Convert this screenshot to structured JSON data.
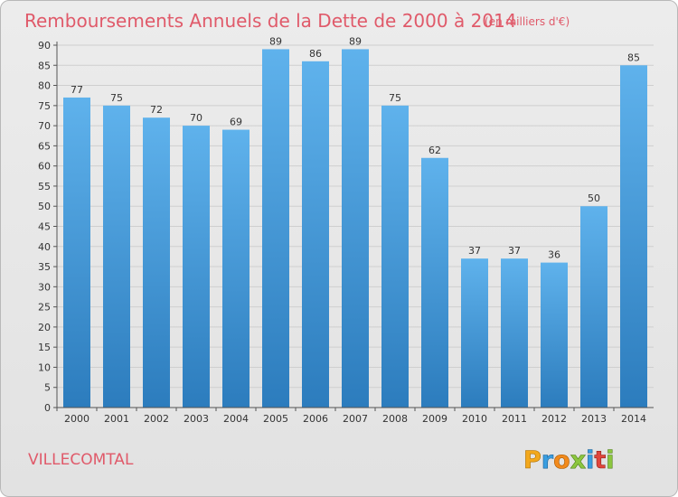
{
  "page": {
    "title": "Remboursements Annuels de la Dette de 2000 à 2014",
    "unit": "(en milliers d'€)",
    "commune": "VILLECOMTAL",
    "logo_text": "Proxiti"
  },
  "colors": {
    "title": "#e05a6a",
    "bar_light": "#5aaee8",
    "bar_dark": "#2f7fc0",
    "background": "#e6e6e6",
    "grid": "#cfcfcf"
  },
  "chart_data": {
    "type": "bar",
    "title": "Remboursements Annuels de la Dette de 2000 à 2014",
    "subtitle": "(en milliers d'€)",
    "categories": [
      "2000",
      "2001",
      "2002",
      "2003",
      "2004",
      "2005",
      "2006",
      "2007",
      "2008",
      "2009",
      "2010",
      "2011",
      "2012",
      "2013",
      "2014"
    ],
    "values": [
      77,
      75,
      72,
      70,
      69,
      89,
      86,
      89,
      75,
      62,
      37,
      37,
      36,
      50,
      85
    ],
    "ylim": [
      0,
      90
    ],
    "yticks": [
      0,
      5,
      10,
      15,
      20,
      25,
      30,
      35,
      40,
      45,
      50,
      55,
      60,
      65,
      70,
      75,
      80,
      85,
      90
    ],
    "grid": true,
    "data_labels": true
  }
}
